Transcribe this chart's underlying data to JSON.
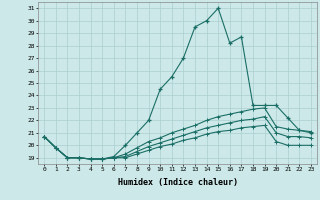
{
  "xlabel": "Humidex (Indice chaleur)",
  "bg_color": "#cce8e8",
  "grid_color": "#aacfcf",
  "line_color": "#1a6e66",
  "xlim": [
    -0.5,
    23.5
  ],
  "ylim": [
    18.5,
    31.5
  ],
  "yticks": [
    19,
    20,
    21,
    22,
    23,
    24,
    25,
    26,
    27,
    28,
    29,
    30,
    31
  ],
  "xticks": [
    0,
    1,
    2,
    3,
    4,
    5,
    6,
    7,
    8,
    9,
    10,
    11,
    12,
    13,
    14,
    15,
    16,
    17,
    18,
    19,
    20,
    21,
    22,
    23
  ],
  "line1_x": [
    0,
    1,
    2,
    3,
    4,
    5,
    6,
    7,
    8,
    9,
    10,
    11,
    12,
    13,
    14,
    15,
    16,
    17,
    18,
    19,
    20,
    21,
    22,
    23
  ],
  "line1_y": [
    20.7,
    19.8,
    19.0,
    19.0,
    18.9,
    18.9,
    19.1,
    20.0,
    21.0,
    22.0,
    24.5,
    25.5,
    27.0,
    29.5,
    30.0,
    31.0,
    28.2,
    28.7,
    23.2,
    23.2,
    23.2,
    22.2,
    21.2,
    21.0
  ],
  "line1_markers": [
    0,
    1,
    2,
    3,
    4,
    5,
    6,
    7,
    8,
    9,
    10,
    11,
    12,
    13,
    14,
    15,
    16,
    17,
    18,
    19,
    20,
    21,
    22,
    23
  ],
  "line2_x": [
    0,
    1,
    2,
    3,
    4,
    5,
    6,
    7,
    8,
    9,
    10,
    11,
    12,
    13,
    14,
    15,
    16,
    17,
    18,
    19,
    20,
    21,
    22,
    23
  ],
  "line2_y": [
    20.7,
    19.8,
    19.0,
    19.0,
    18.9,
    18.9,
    19.0,
    19.3,
    19.8,
    20.3,
    20.6,
    21.0,
    21.3,
    21.6,
    22.0,
    22.3,
    22.5,
    22.7,
    22.9,
    23.0,
    21.5,
    21.3,
    21.2,
    21.1
  ],
  "line3_x": [
    0,
    1,
    2,
    3,
    4,
    5,
    6,
    7,
    8,
    9,
    10,
    11,
    12,
    13,
    14,
    15,
    16,
    17,
    18,
    19,
    20,
    21,
    22,
    23
  ],
  "line3_y": [
    20.7,
    19.8,
    19.0,
    19.0,
    18.9,
    18.9,
    19.0,
    19.1,
    19.5,
    19.9,
    20.2,
    20.5,
    20.8,
    21.1,
    21.4,
    21.6,
    21.8,
    22.0,
    22.1,
    22.3,
    21.0,
    20.7,
    20.7,
    20.6
  ],
  "line4_x": [
    0,
    1,
    2,
    3,
    4,
    5,
    6,
    7,
    8,
    9,
    10,
    11,
    12,
    13,
    14,
    15,
    16,
    17,
    18,
    19,
    20,
    21,
    22,
    23
  ],
  "line4_y": [
    20.7,
    19.8,
    19.0,
    19.0,
    18.9,
    18.9,
    19.0,
    19.0,
    19.3,
    19.6,
    19.9,
    20.1,
    20.4,
    20.6,
    20.9,
    21.1,
    21.2,
    21.4,
    21.5,
    21.6,
    20.3,
    20.0,
    20.0,
    20.0
  ]
}
